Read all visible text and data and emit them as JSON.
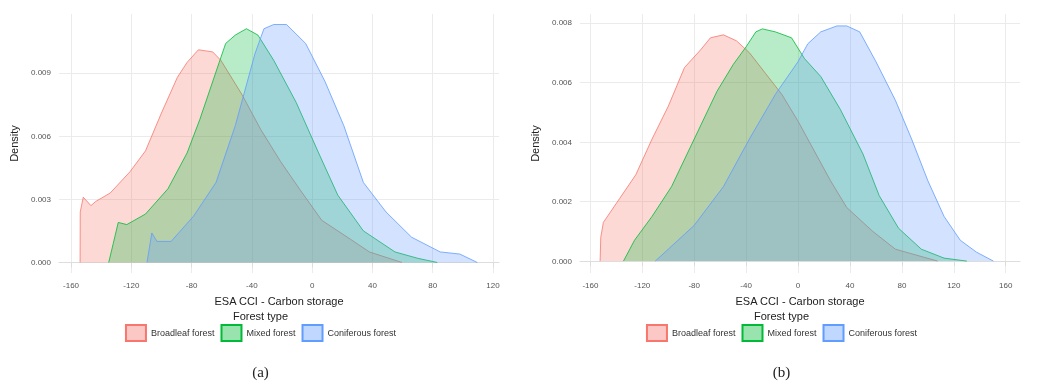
{
  "chart_data": [
    {
      "type": "area",
      "xlabel": "ESA CCI - Carbon storage",
      "ylabel": "Density",
      "legend_title": "Forest type",
      "legend": "bottom",
      "grid": true,
      "marker": "none",
      "line_style": "solid",
      "xlim": [
        -168,
        124
      ],
      "ylim": [
        -0.0005,
        0.0118
      ],
      "xticks": [
        -160,
        -120,
        -80,
        -40,
        0,
        40,
        80,
        120
      ],
      "yticks": [
        {
          "value": 0,
          "label": "0.000"
        },
        {
          "value": 0.003,
          "label": "0.003"
        },
        {
          "value": 0.006,
          "label": "0.006"
        },
        {
          "value": 0.009,
          "label": "0.009"
        }
      ],
      "annotations": [
        "(a)"
      ],
      "series": [
        {
          "name": "Broadleaf forest",
          "color": "#f8766d",
          "x": [
            -154,
            -153.9,
            -151.9,
            -146.8,
            -143.6,
            -134,
            -121,
            -110.6,
            -100,
            -89.4,
            -83,
            -75.5,
            -66,
            -60.6,
            -46.8,
            -34,
            -21,
            -8.5,
            6.4,
            25.5,
            38,
            59.6
          ],
          "values": [
            0,
            0.0024,
            0.0031,
            0.0027,
            0.0029,
            0.0033,
            0.0043,
            0.0053,
            0.0071,
            0.0088,
            0.0095,
            0.0101,
            0.01,
            0.0096,
            0.008,
            0.0063,
            0.0048,
            0.0035,
            0.002,
            0.0011,
            0.0005,
            0
          ]
        },
        {
          "name": "Mixed forest",
          "color": "#00ba38",
          "x": [
            -135,
            -132,
            -128.7,
            -123,
            -110.6,
            -95.7,
            -83,
            -74.5,
            -61.7,
            -57.4,
            -51,
            -43.6,
            -36,
            -25.5,
            -10.6,
            4.3,
            17,
            34,
            55,
            70,
            83
          ],
          "values": [
            0,
            0.0009,
            0.0019,
            0.0018,
            0.0023,
            0.0035,
            0.0052,
            0.0068,
            0.0095,
            0.0104,
            0.0108,
            0.0111,
            0.0108,
            0.0096,
            0.0076,
            0.0052,
            0.0032,
            0.0015,
            0.0005,
            0.0002,
            0
          ]
        },
        {
          "name": "Coniferous forest",
          "color": "#619cff",
          "x": [
            -109.6,
            -106.4,
            -103,
            -93.6,
            -78.7,
            -63.8,
            -51,
            -38,
            -32,
            -25.5,
            -17,
            -4.3,
            8.5,
            21,
            34,
            49,
            66,
            85,
            98,
            109.6
          ],
          "values": [
            0,
            0.0014,
            0.001,
            0.001,
            0.0022,
            0.0038,
            0.0065,
            0.0099,
            0.0111,
            0.0113,
            0.0113,
            0.0104,
            0.0086,
            0.0065,
            0.0038,
            0.0024,
            0.0012,
            0.0005,
            0.0004,
            0
          ]
        }
      ]
    },
    {
      "type": "area",
      "xlabel": "ESA CCI - Carbon storage",
      "ylabel": "Density",
      "legend_title": "Forest type",
      "legend": "bottom",
      "grid": true,
      "marker": "none",
      "line_style": "solid",
      "xlim": [
        -168,
        171
      ],
      "ylim": [
        -0.0004,
        0.0083
      ],
      "xticks": [
        -160,
        -120,
        -80,
        -40,
        0,
        40,
        80,
        120,
        160
      ],
      "yticks": [
        {
          "value": 0,
          "label": "0.000"
        },
        {
          "value": 0.002,
          "label": "0.002"
        },
        {
          "value": 0.004,
          "label": "0.004"
        },
        {
          "value": 0.006,
          "label": "0.006"
        },
        {
          "value": 0.008,
          "label": "0.008"
        }
      ],
      "annotations": [
        "(b)"
      ],
      "series": [
        {
          "name": "Broadleaf forest",
          "color": "#f8766d",
          "x": [
            -152.5,
            -152,
            -150,
            -137.5,
            -125,
            -112.5,
            -100,
            -87.5,
            -75,
            -67.5,
            -57.5,
            -47.5,
            -37.5,
            -25,
            -12.5,
            0,
            12.5,
            25,
            37.5,
            57.5,
            75,
            107.5
          ],
          "values": [
            0,
            0.0008,
            0.0013,
            0.0021,
            0.0029,
            0.0041,
            0.0052,
            0.0065,
            0.0071,
            0.0075,
            0.0076,
            0.0074,
            0.007,
            0.0063,
            0.0056,
            0.0047,
            0.0037,
            0.0027,
            0.0018,
            0.001,
            0.0004,
            0
          ]
        },
        {
          "name": "Mixed forest",
          "color": "#00ba38",
          "x": [
            -134.5,
            -126,
            -112.5,
            -97.5,
            -80,
            -62.5,
            -50,
            -40,
            -32.5,
            -27.5,
            -17.5,
            -5,
            5,
            17.5,
            32.5,
            50,
            62.5,
            77.5,
            95,
            112.5,
            130
          ],
          "values": [
            0,
            0.0007,
            0.0015,
            0.0025,
            0.0041,
            0.0057,
            0.0066,
            0.0072,
            0.0077,
            0.0078,
            0.0077,
            0.0075,
            0.0068,
            0.0062,
            0.0051,
            0.0036,
            0.0022,
            0.0011,
            0.0004,
            0.0001,
            0
          ]
        },
        {
          "name": "Coniferous forest",
          "color": "#619cff",
          "x": [
            -110,
            -100,
            -80,
            -57.5,
            -37.5,
            -17.5,
            0,
            7.5,
            17.5,
            30,
            37.5,
            47.5,
            60,
            75,
            87.5,
            100,
            112.5,
            125,
            137.5,
            150.5
          ],
          "values": [
            0,
            0.0004,
            0.0012,
            0.0025,
            0.0041,
            0.0056,
            0.0067,
            0.0073,
            0.0077,
            0.0079,
            0.0079,
            0.0077,
            0.0067,
            0.0054,
            0.0041,
            0.0027,
            0.0015,
            0.0007,
            0.0003,
            0
          ]
        }
      ]
    }
  ]
}
